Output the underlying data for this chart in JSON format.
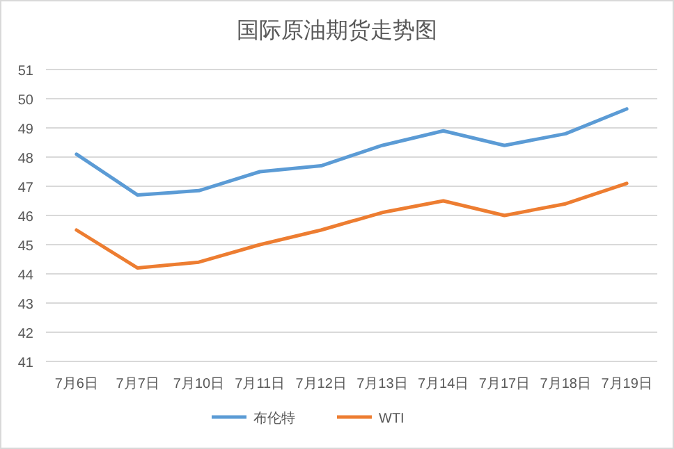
{
  "chart_data": {
    "type": "line",
    "title": "国际原油期货走势图",
    "categories": [
      "7月6日",
      "7月7日",
      "7月10日",
      "7月11日",
      "7月12日",
      "7月13日",
      "7月14日",
      "7月17日",
      "7月18日",
      "7月19日"
    ],
    "series": [
      {
        "name": "布伦特",
        "color": "#5b9bd5",
        "values": [
          48.1,
          46.7,
          46.85,
          47.5,
          47.7,
          48.4,
          48.9,
          48.4,
          48.8,
          49.65
        ]
      },
      {
        "name": "WTI",
        "color": "#ed7d31",
        "values": [
          45.5,
          44.2,
          44.4,
          45.0,
          45.5,
          46.1,
          46.5,
          46.0,
          46.4,
          47.1
        ]
      }
    ],
    "ylim": [
      41,
      51
    ],
    "yticks": [
      41,
      42,
      43,
      44,
      45,
      46,
      47,
      48,
      49,
      50,
      51
    ],
    "grid": "y",
    "legend": "bottom",
    "marker": "none",
    "line_style": "solid"
  }
}
